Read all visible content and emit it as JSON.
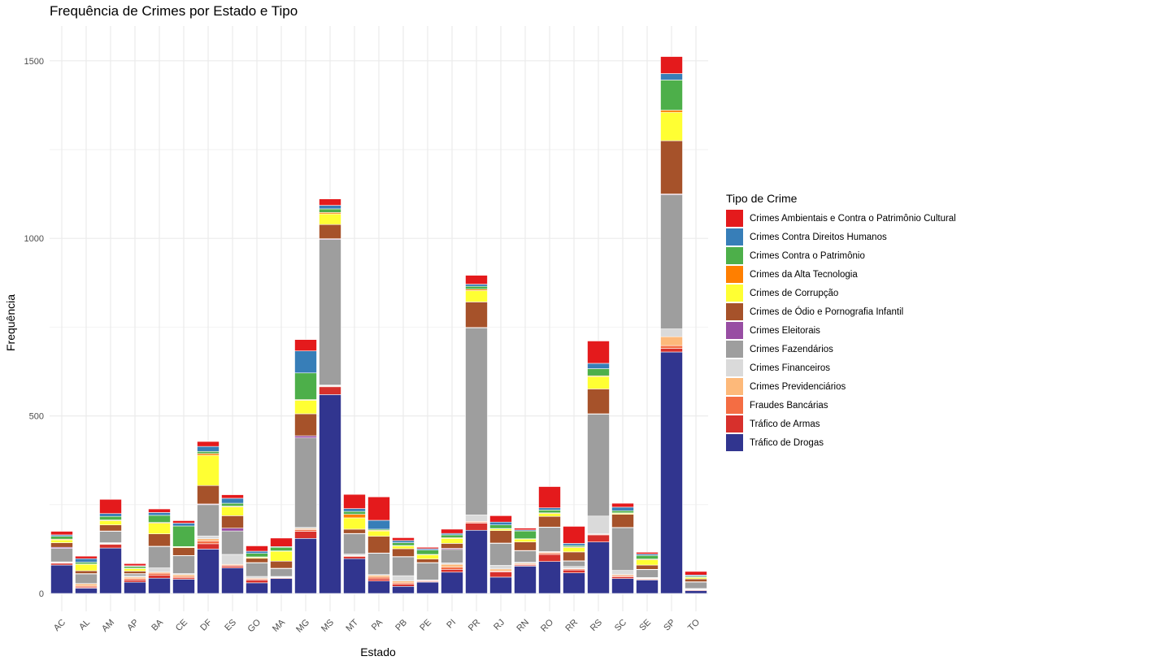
{
  "chart_data": {
    "type": "bar",
    "stacked": true,
    "title": "Frequência de Crimes por Estado e Tipo",
    "xlabel": "Estado",
    "ylabel": "Frequência",
    "ylim": [
      0,
      1600
    ],
    "yticks": [
      0,
      500,
      1000,
      1500
    ],
    "grid": true,
    "legend_title": "Tipo de Crime",
    "legend_position": "right",
    "categories": [
      "AC",
      "AL",
      "AM",
      "AP",
      "BA",
      "CE",
      "DF",
      "ES",
      "GO",
      "MA",
      "MG",
      "MS",
      "MT",
      "PA",
      "PB",
      "PE",
      "PI",
      "PR",
      "RJ",
      "RN",
      "RO",
      "RR",
      "RS",
      "SC",
      "SE",
      "SP",
      "TO"
    ],
    "series": [
      {
        "name": "Tráfico de Drogas",
        "color": "#31358F",
        "values": [
          80,
          15,
          128,
          32,
          43,
          40,
          125,
          72,
          30,
          42,
          155,
          560,
          98,
          35,
          20,
          32,
          60,
          178,
          46,
          77,
          90,
          58,
          145,
          42,
          38,
          680,
          8
        ]
      },
      {
        "name": "Tráfico de Armas",
        "color": "#D7302C",
        "values": [
          5,
          3,
          10,
          6,
          8,
          4,
          15,
          5,
          8,
          2,
          20,
          22,
          6,
          6,
          6,
          2,
          8,
          20,
          15,
          3,
          20,
          8,
          20,
          5,
          2,
          10,
          2
        ]
      },
      {
        "name": "Fraudes Bancárias",
        "color": "#F46D43",
        "values": [
          2,
          3,
          2,
          4,
          6,
          4,
          8,
          3,
          3,
          1,
          5,
          2,
          2,
          5,
          4,
          2,
          6,
          3,
          2,
          2,
          4,
          3,
          2,
          3,
          2,
          8,
          1
        ]
      },
      {
        "name": "Crimes Previdenciários",
        "color": "#FDB97A",
        "values": [
          1,
          6,
          1,
          4,
          3,
          5,
          6,
          2,
          2,
          1,
          3,
          1,
          1,
          5,
          5,
          1,
          8,
          2,
          6,
          3,
          2,
          1,
          1,
          3,
          1,
          25,
          1
        ]
      },
      {
        "name": "Crimes Financeiros",
        "color": "#DADADA",
        "values": [
          1,
          1,
          2,
          3,
          12,
          3,
          8,
          28,
          5,
          2,
          3,
          2,
          4,
          2,
          15,
          1,
          4,
          18,
          10,
          3,
          2,
          6,
          50,
          12,
          2,
          22,
          2
        ]
      },
      {
        "name": "Crimes Fazendários",
        "color": "#9E9E9E",
        "values": [
          38,
          27,
          32,
          6,
          60,
          50,
          88,
          66,
          38,
          22,
          252,
          410,
          57,
          60,
          53,
          48,
          38,
          527,
          62,
          32,
          68,
          15,
          287,
          120,
          22,
          378,
          18
        ]
      },
      {
        "name": "Crimes Eleitorais",
        "color": "#984EA3",
        "values": [
          3,
          1,
          1,
          1,
          1,
          1,
          2,
          8,
          1,
          1,
          6,
          2,
          1,
          1,
          1,
          1,
          3,
          1,
          1,
          1,
          1,
          1,
          1,
          1,
          1,
          2,
          1
        ]
      },
      {
        "name": "Crimes de Ódio e Pornografia Infantil",
        "color": "#A6522A",
        "values": [
          13,
          8,
          17,
          7,
          35,
          22,
          52,
          35,
          12,
          20,
          62,
          40,
          12,
          47,
          22,
          10,
          14,
          72,
          35,
          24,
          30,
          25,
          70,
          37,
          12,
          150,
          8
        ]
      },
      {
        "name": "Crimes de Corrupção",
        "color": "#FFFF33",
        "values": [
          8,
          18,
          12,
          7,
          30,
          2,
          85,
          25,
          3,
          28,
          38,
          30,
          32,
          15,
          8,
          12,
          14,
          32,
          5,
          8,
          8,
          12,
          35,
          3,
          15,
          80,
          4
        ]
      },
      {
        "name": "Crimes da Alta Tecnologia",
        "color": "#FF7F00",
        "values": [
          2,
          1,
          2,
          1,
          2,
          1,
          5,
          2,
          1,
          1,
          2,
          4,
          10,
          2,
          1,
          1,
          2,
          4,
          1,
          1,
          2,
          2,
          2,
          1,
          2,
          6,
          1
        ]
      },
      {
        "name": "Crimes Contra o Patrimônio",
        "color": "#4DAF4A",
        "values": [
          8,
          5,
          10,
          5,
          20,
          58,
          6,
          8,
          10,
          10,
          75,
          10,
          8,
          3,
          8,
          12,
          8,
          8,
          10,
          22,
          8,
          4,
          20,
          6,
          10,
          85,
          3
        ]
      },
      {
        "name": "Crimes Contra Direitos Humanos",
        "color": "#377EB8",
        "values": [
          4,
          10,
          8,
          2,
          8,
          8,
          14,
          14,
          6,
          2,
          62,
          10,
          8,
          25,
          6,
          4,
          4,
          6,
          8,
          3,
          6,
          6,
          15,
          10,
          4,
          18,
          3
        ]
      },
      {
        "name": "Crimes Ambientais e Contra o Patrimônio Cultural",
        "color": "#E41A1C",
        "values": [
          10,
          7,
          40,
          6,
          10,
          7,
          14,
          10,
          15,
          24,
          32,
          18,
          40,
          66,
          8,
          4,
          12,
          25,
          18,
          5,
          60,
          48,
          63,
          11,
          5,
          48,
          10
        ]
      }
    ],
    "legend_order": [
      "Crimes Ambientais e Contra o Patrimônio Cultural",
      "Crimes Contra Direitos Humanos",
      "Crimes Contra o Patrimônio",
      "Crimes da Alta Tecnologia",
      "Crimes de Corrupção",
      "Crimes de Ódio e Pornografia Infantil",
      "Crimes Eleitorais",
      "Crimes Fazendários",
      "Crimes Financeiros",
      "Crimes Previdenciários",
      "Fraudes Bancárias",
      "Tráfico de Armas",
      "Tráfico de Drogas"
    ]
  }
}
